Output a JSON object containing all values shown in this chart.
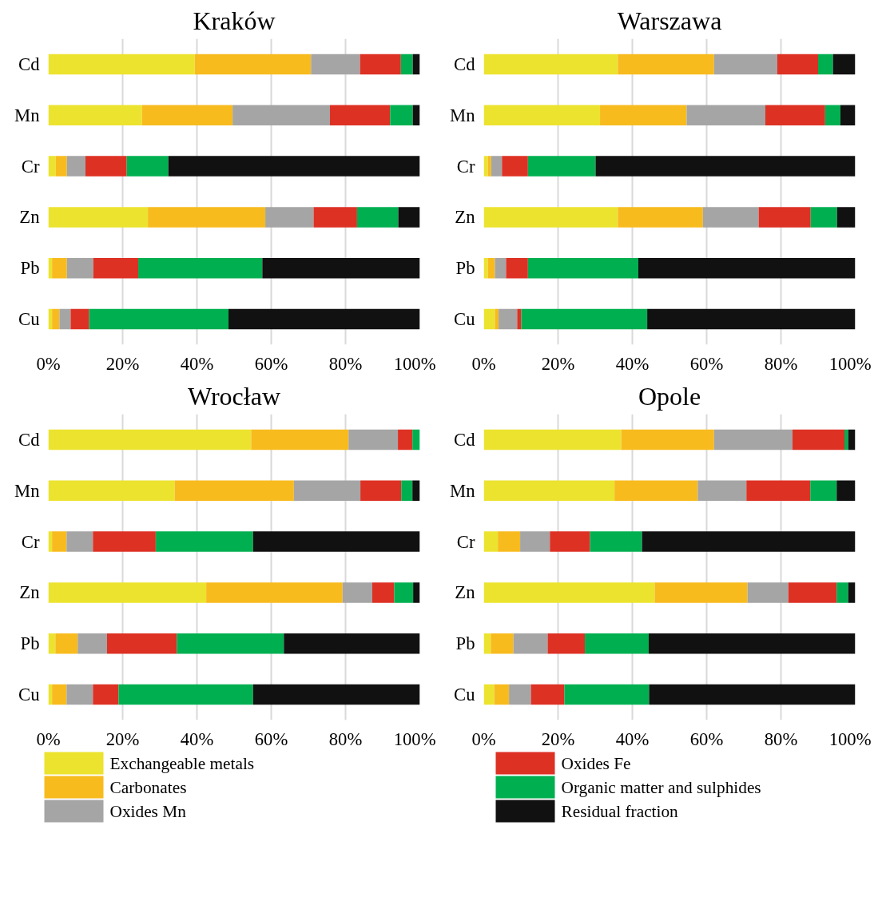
{
  "chart_data": [
    {
      "type": "bar",
      "title": "Kraków",
      "orientation": "horizontal",
      "stacked": true,
      "categories": [
        "Cd",
        "Mn",
        "Cr",
        "Zn",
        "Pb",
        "Cu"
      ],
      "xlim": [
        0,
        100
      ],
      "xticks": [
        {
          "value": 0,
          "label": "0%"
        },
        {
          "value": 20,
          "label": "20%"
        },
        {
          "value": 40,
          "label": "40%"
        },
        {
          "value": 60,
          "label": "60%"
        },
        {
          "value": 80,
          "label": "80%"
        },
        {
          "value": 100,
          "label": "100%"
        }
      ],
      "grid": "x",
      "legend": "bottom",
      "series": [
        {
          "name": "Exchangeable metals",
          "color": "#ece32f",
          "values": [
            39.4,
            25.2,
            2.0,
            26.8,
            1.0,
            1.0
          ]
        },
        {
          "name": "Carbonates",
          "color": "#f8bb1e",
          "values": [
            31.3,
            24.4,
            3.0,
            31.6,
            4.0,
            2.0
          ]
        },
        {
          "name": "Oxides Mn",
          "color": "#a5a5a5",
          "values": [
            13.2,
            26.2,
            5.0,
            13.0,
            7.1,
            3.0
          ]
        },
        {
          "name": "Oxides Fe",
          "color": "#dd3124",
          "values": [
            11.0,
            16.2,
            11.1,
            11.7,
            12.1,
            5.0
          ]
        },
        {
          "name": "Organic matter and sulphides",
          "color": "#00af50",
          "values": [
            3.2,
            6.1,
            11.2,
            11.1,
            33.4,
            37.5
          ]
        },
        {
          "name": "Residual fraction",
          "color": "#111111",
          "values": [
            1.9,
            1.9,
            67.7,
            5.8,
            42.4,
            51.5
          ]
        }
      ]
    },
    {
      "type": "bar",
      "title": "Warszawa",
      "orientation": "horizontal",
      "stacked": true,
      "categories": [
        "Cd",
        "Mn",
        "Cr",
        "Zn",
        "Pb",
        "Cu"
      ],
      "xlim": [
        0,
        100
      ],
      "xticks": [
        {
          "value": 0,
          "label": "0%"
        },
        {
          "value": 20,
          "label": "20%"
        },
        {
          "value": 40,
          "label": "40%"
        },
        {
          "value": 60,
          "label": "60%"
        },
        {
          "value": 80,
          "label": "80%"
        },
        {
          "value": 100,
          "label": "100%"
        }
      ],
      "grid": "x",
      "series": [
        {
          "color": "#ece32f",
          "values": [
            36.1,
            31.3,
            1.1,
            36.1,
            1.1,
            3.0
          ]
        },
        {
          "color": "#f8bb1e",
          "values": [
            25.9,
            23.3,
            0.9,
            22.9,
            1.9,
            1.0
          ]
        },
        {
          "color": "#a5a5a5",
          "values": [
            17.0,
            21.2,
            2.9,
            15.0,
            3.0,
            5.0
          ]
        },
        {
          "color": "#dd3124",
          "values": [
            11.0,
            16.1,
            7.0,
            14.0,
            5.9,
            1.1
          ]
        },
        {
          "color": "#00af50",
          "values": [
            4.0,
            4.1,
            18.2,
            7.1,
            29.7,
            33.9
          ]
        },
        {
          "color": "#111111",
          "values": [
            6.0,
            4.0,
            69.9,
            4.9,
            58.4,
            56.0
          ]
        }
      ]
    },
    {
      "type": "bar",
      "title": "Wrocław",
      "orientation": "horizontal",
      "stacked": true,
      "categories": [
        "Cd",
        "Mn",
        "Cr",
        "Zn",
        "Pb",
        "Cu"
      ],
      "xlim": [
        0,
        100
      ],
      "xticks": [
        {
          "value": 0,
          "label": "0%"
        },
        {
          "value": 20,
          "label": "20%"
        },
        {
          "value": 40,
          "label": "40%"
        },
        {
          "value": 60,
          "label": "60%"
        },
        {
          "value": 80,
          "label": "80%"
        },
        {
          "value": 100,
          "label": "100%"
        }
      ],
      "grid": "x",
      "series": [
        {
          "color": "#ece32f",
          "values": [
            54.6,
            34.0,
            1.0,
            42.5,
            1.9,
            1.0
          ]
        },
        {
          "color": "#f8bb1e",
          "values": [
            26.2,
            32.1,
            3.9,
            36.7,
            6.0,
            3.9
          ]
        },
        {
          "color": "#a5a5a5",
          "values": [
            13.3,
            17.9,
            7.1,
            8.0,
            7.9,
            7.1
          ]
        },
        {
          "color": "#dd3124",
          "values": [
            3.9,
            11.0,
            16.9,
            5.9,
            18.8,
            6.9
          ]
        },
        {
          "color": "#00af50",
          "values": [
            2.0,
            3.0,
            26.2,
            5.1,
            28.8,
            36.2
          ]
        },
        {
          "color": "#111111",
          "values": [
            0,
            2.0,
            44.9,
            1.8,
            36.6,
            44.9
          ]
        }
      ]
    },
    {
      "type": "bar",
      "title": "Opole",
      "orientation": "horizontal",
      "stacked": true,
      "categories": [
        "Cd",
        "Mn",
        "Cr",
        "Zn",
        "Pb",
        "Cu"
      ],
      "xlim": [
        0,
        100
      ],
      "xticks": [
        {
          "value": 0,
          "label": "0%"
        },
        {
          "value": 20,
          "label": "20%"
        },
        {
          "value": 40,
          "label": "40%"
        },
        {
          "value": 60,
          "label": "60%"
        },
        {
          "value": 80,
          "label": "80%"
        },
        {
          "value": 100,
          "label": "100%"
        }
      ],
      "grid": "x",
      "series": [
        {
          "color": "#ece32f",
          "values": [
            37.0,
            35.2,
            3.8,
            46.0,
            1.9,
            2.8
          ]
        },
        {
          "color": "#f8bb1e",
          "values": [
            25.0,
            22.4,
            6.0,
            25.0,
            6.1,
            4.0
          ]
        },
        {
          "color": "#a5a5a5",
          "values": [
            21.1,
            13.1,
            8.0,
            11.0,
            9.2,
            5.9
          ]
        },
        {
          "color": "#dd3124",
          "values": [
            14.0,
            17.2,
            10.8,
            13.0,
            10.0,
            9.0
          ]
        },
        {
          "color": "#00af50",
          "values": [
            1.0,
            7.1,
            14.0,
            3.1,
            17.2,
            22.8
          ]
        },
        {
          "color": "#111111",
          "values": [
            1.9,
            5.0,
            57.4,
            1.9,
            55.6,
            55.5
          ]
        }
      ]
    }
  ]
}
